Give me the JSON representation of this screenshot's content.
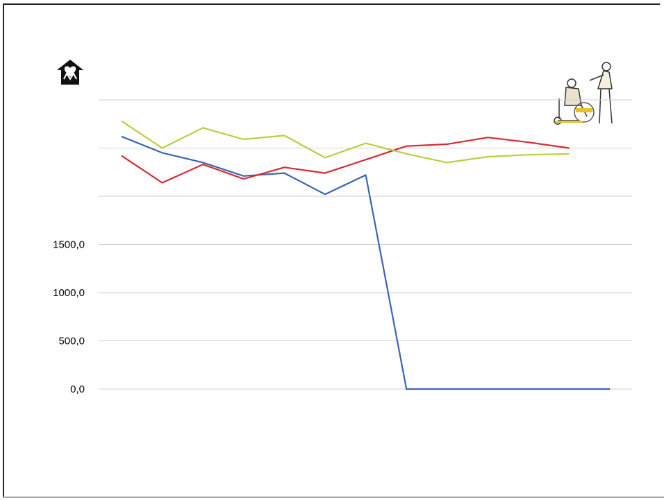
{
  "chart_data": {
    "type": "line",
    "title": "",
    "xlabel": "",
    "ylabel": "",
    "ylim": [
      0,
      3000
    ],
    "yticks_visible": [
      {
        "value": 0,
        "label": "0,0"
      },
      {
        "value": 500,
        "label": "500,0"
      },
      {
        "value": 1000,
        "label": "1000,0"
      },
      {
        "value": 1500,
        "label": "1500,0"
      }
    ],
    "grid_values": [
      0,
      500,
      1000,
      1500,
      2000,
      2500,
      3000
    ],
    "x_count": 13,
    "series": [
      {
        "color": "#3a64b4",
        "values": [
          2620,
          2450,
          2350,
          2210,
          2240,
          2020,
          2220,
          0,
          0,
          0,
          0,
          0,
          0
        ]
      },
      {
        "color": "#d62a33",
        "values": [
          2420,
          2140,
          2330,
          2180,
          2300,
          2240,
          2380,
          2520,
          2540,
          2610,
          2560,
          2500,
          null
        ]
      },
      {
        "color": "#b9cf3f",
        "values": [
          2780,
          2500,
          2710,
          2590,
          2630,
          2400,
          2550,
          2440,
          2350,
          2410,
          2430,
          2440,
          null
        ]
      }
    ]
  },
  "icons": {
    "logo": "house-heart-logo-icon",
    "illustration": "wheelchair-caregiver-icon"
  }
}
